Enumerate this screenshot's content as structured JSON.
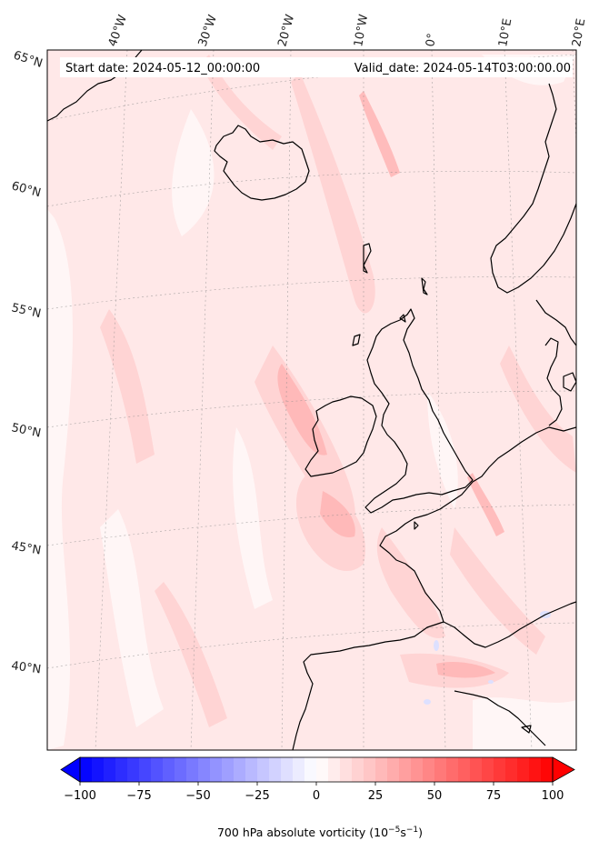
{
  "map": {
    "start_date_label": "Start date: 2024-05-12_00:00:00",
    "valid_date_label": "Valid_date: 2024-05-14T03:00:00.00",
    "longitude_labels": [
      "40°W",
      "30°W",
      "20°W",
      "10°W",
      "0°",
      "10°E",
      "20°E"
    ],
    "latitude_labels": [
      "65°N",
      "60°N",
      "55°N",
      "50°N",
      "45°N",
      "40°N"
    ],
    "field_colors": {
      "background": "#ffe8e8",
      "light": "#fff6f6",
      "medium": "#ffd2d2",
      "strong": "#ffb4b4",
      "negative": "#dde0ff"
    }
  },
  "colorbar": {
    "min": -100,
    "max": 100,
    "ticks": [
      "−100",
      "−75",
      "−50",
      "−25",
      "0",
      "25",
      "50",
      "75",
      "100"
    ],
    "tick_values": [
      -100,
      -75,
      -50,
      -25,
      0,
      25,
      50,
      75,
      100
    ],
    "label_main": "700 hPa absolute vorticity (10",
    "label_exp1": "−5",
    "label_mid": "s",
    "label_exp2": "−1",
    "label_end": ")",
    "color_low": "#0000ff",
    "color_mid": "#ffffff",
    "color_high": "#ff0000"
  }
}
